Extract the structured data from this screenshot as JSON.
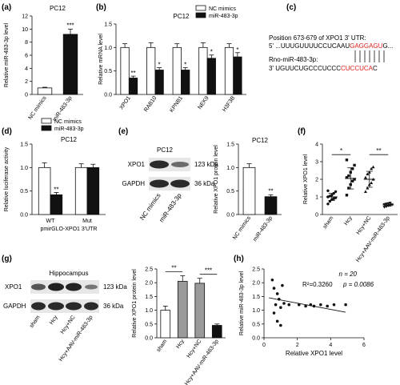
{
  "panel_letters": [
    "(a)",
    "(b)",
    "(c)",
    "(d)",
    "(e)",
    "(f)",
    "(g)",
    "(h)"
  ],
  "colors": {
    "black": "#111111",
    "white": "#ffffff",
    "red": "#e0201b",
    "gray": "#9a9a9a"
  },
  "panel_c": {
    "line1": "Position  673-679 of XPO1 3' UTR:",
    "line2_prefix": "5'  ...UUUGUUUUCCUCAAU",
    "line2_seed": "GAGGAGU",
    "line2_suffix": "G...",
    "line3": "Rno-miR-483-3p:",
    "line4_prefix": "3'    UGUUCUGCCCUCCC",
    "line4_seed": "CUCCUCA",
    "line4_suffix": "C"
  },
  "panel_e_blot": {
    "cell": "PC12",
    "rows": [
      "XPO1",
      "GAPDH"
    ],
    "kda": [
      "123 kDa",
      "36 kDa"
    ],
    "lanes": [
      "NC mimics",
      "miR-483-3p"
    ]
  },
  "panel_g_blot": {
    "tissue": "Hippocampus",
    "rows": [
      "XPO1",
      "GAPDH"
    ],
    "kda": [
      "123 kDa",
      "36 kDa"
    ],
    "lanes": [
      "sham",
      "Hcy",
      "Hcy+NC",
      "Hcy+AAV-miR-483-3p"
    ]
  },
  "chart_data": [
    {
      "panel": "a",
      "type": "bar",
      "title": "PC12",
      "ylabel": "Relative miR-483-3p level",
      "categories": [
        "NC mimics",
        "miR-483-3p"
      ],
      "values": [
        1.0,
        9.2
      ],
      "errors": [
        0.1,
        0.8
      ],
      "fills": [
        "white",
        "black"
      ],
      "ylim": [
        0,
        12
      ],
      "yticks": [
        0,
        2,
        4,
        6,
        8,
        10,
        12
      ],
      "sig": [
        {
          "index": 1,
          "label": "***"
        }
      ]
    },
    {
      "panel": "b",
      "type": "bar",
      "title": "PC12",
      "ylabel": "Relative mRNA level",
      "categories": [
        "XPO1",
        "RAB10",
        "KPNB1",
        "NEK9",
        "H3F3B"
      ],
      "series": [
        {
          "name": "NC mimics",
          "values": [
            1,
            1,
            1,
            1,
            1
          ],
          "errors": [
            0.08,
            0.1,
            0.08,
            0.1,
            0.08
          ],
          "fill": "white"
        },
        {
          "name": "miR-483-3p",
          "values": [
            0.35,
            0.52,
            0.52,
            0.77,
            0.8
          ],
          "errors": [
            0.04,
            0.05,
            0.05,
            0.07,
            0.09
          ],
          "fill": "black"
        }
      ],
      "ylim": [
        0,
        1.5
      ],
      "yticks": [
        "0.0",
        "0.5",
        "1.0",
        "1.5"
      ],
      "legend": "top-right",
      "sig": [
        "**",
        "*",
        "*",
        "*",
        "*"
      ]
    },
    {
      "panel": "d",
      "type": "bar",
      "title": "PC12",
      "ylabel": "Relative luciferase activity",
      "categories": [
        "WT",
        "Mut"
      ],
      "xlabel": "pmirGLO-XPO1 3'UTR",
      "series": [
        {
          "name": "NC mimics",
          "values": [
            1.0,
            1.0
          ],
          "errors": [
            0.1,
            0.08
          ],
          "fill": "white"
        },
        {
          "name": "miR-483-3p",
          "values": [
            0.42,
            1.0
          ],
          "errors": [
            0.05,
            0.07
          ],
          "fill": "black"
        }
      ],
      "ylim": [
        0,
        1.5
      ],
      "yticks": [
        "0.0",
        "0.5",
        "1.0",
        "1.5"
      ],
      "legend": "top",
      "sig": [
        "**",
        ""
      ]
    },
    {
      "panel": "e",
      "type": "bar",
      "title": "PC12",
      "ylabel": "Relative XPO1 protein level",
      "categories": [
        "NC mimics",
        "miR-483-3p"
      ],
      "values": [
        1.0,
        0.38
      ],
      "errors": [
        0.08,
        0.04
      ],
      "fills": [
        "white",
        "black"
      ],
      "ylim": [
        0,
        1.5
      ],
      "yticks": [
        "0.0",
        "0.5",
        "1.0",
        "1.5"
      ],
      "sig": [
        {
          "index": 1,
          "label": "**"
        }
      ]
    },
    {
      "panel": "f",
      "type": "scatter",
      "ylabel": "Relative XPO1 level",
      "categories": [
        "sham",
        "Hcy",
        "Hcy+NC",
        "Hcy+AAV-miR-483-3p"
      ],
      "means": [
        1.0,
        2.05,
        2.0,
        0.55
      ],
      "errors": [
        0.2,
        0.6,
        0.45,
        0.08
      ],
      "points": [
        [
          0.6,
          0.75,
          0.85,
          0.9,
          0.95,
          1.0,
          1.05,
          1.1,
          1.2,
          1.3,
          1.35
        ],
        [
          1.1,
          1.5,
          1.7,
          1.9,
          2.0,
          2.1,
          2.2,
          2.4,
          2.6,
          2.8,
          3.1
        ],
        [
          1.3,
          1.5,
          1.7,
          1.8,
          2.0,
          2.1,
          2.3,
          2.4,
          2.6,
          2.7
        ],
        [
          0.42,
          0.45,
          0.5,
          0.52,
          0.55,
          0.57,
          0.6,
          0.62,
          0.65
        ]
      ],
      "ylim": [
        0,
        4
      ],
      "yticks": [
        0,
        1,
        2,
        3,
        4
      ],
      "brackets": [
        {
          "from": 0,
          "to": 1,
          "label": "*"
        },
        {
          "from": 2,
          "to": 3,
          "label": "**"
        }
      ]
    },
    {
      "panel": "g",
      "type": "bar",
      "ylabel": "Relative XPO1 protein level",
      "categories": [
        "sham",
        "Hcy",
        "Hcy+NC",
        "Hcy+AAV-miR-483-3p"
      ],
      "values": [
        1.0,
        2.05,
        1.98,
        0.45
      ],
      "errors": [
        0.15,
        0.2,
        0.18,
        0.05
      ],
      "fills": [
        "white",
        "gray",
        "gray",
        "black"
      ],
      "ylim": [
        0,
        2.5
      ],
      "yticks": [
        "0.0",
        "0.5",
        "1.0",
        "1.5",
        "2.0",
        "2.5"
      ],
      "brackets": [
        {
          "from": 0,
          "to": 1,
          "label": "**"
        },
        {
          "from": 2,
          "to": 3,
          "label": "***"
        }
      ]
    },
    {
      "panel": "h",
      "type": "scatter",
      "xlabel": "Relative XPO1 level",
      "ylabel": "Relative miR-483-3p level",
      "xlim": [
        0,
        6
      ],
      "ylim": [
        0,
        2.5
      ],
      "xticks": [
        0,
        2,
        4,
        6
      ],
      "yticks": [
        "0.0",
        "0.5",
        "1.0",
        "1.5",
        "2.0",
        "2.5"
      ],
      "x": [
        0.5,
        0.6,
        0.6,
        0.7,
        0.8,
        0.8,
        0.9,
        1.0,
        1.0,
        1.1,
        1.2,
        1.5,
        2.1,
        2.5,
        2.8,
        3.0,
        3.4,
        3.8,
        4.2,
        4.9
      ],
      "y": [
        2.1,
        1.8,
        0.9,
        1.2,
        0.6,
        1.6,
        1.4,
        1.1,
        0.45,
        1.9,
        1.25,
        1.2,
        1.2,
        1.15,
        1.2,
        1.15,
        1.2,
        1.15,
        1.2,
        1.2
      ],
      "fit": {
        "x": [
          0.3,
          4.9
        ],
        "y": [
          1.45,
          0.93
        ]
      },
      "annotations": [
        "n = 20",
        "R²=0.3260",
        "p = 0.0086"
      ]
    }
  ]
}
